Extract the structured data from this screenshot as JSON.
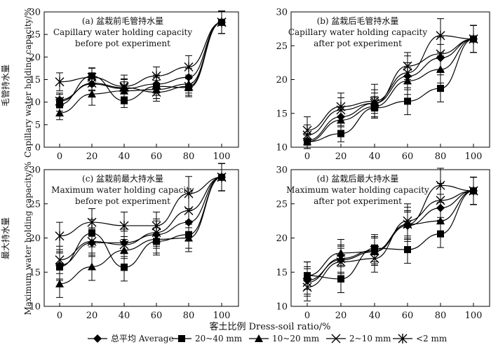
{
  "figure": {
    "y_label_left_top": "毛管持水量",
    "y_label_en_top": "Capillary water holding capacity/%",
    "y_label_left_bottom": "最大持水量",
    "y_label_en_bottom": "Maximum water holding capacity/%",
    "x_label": "客土比例 Dress-soil ratio/%"
  },
  "legend": [
    {
      "name": "总平均 Average",
      "marker": "diamond"
    },
    {
      "name": "20~40 mm",
      "marker": "square"
    },
    {
      "name": "10~20 mm",
      "marker": "triangle"
    },
    {
      "name": "2~10 mm",
      "marker": "x"
    },
    {
      "name": "<2 mm",
      "marker": "star"
    }
  ],
  "chart_data": [
    {
      "type": "line",
      "panel": "a",
      "title_lines": [
        "(a) 盆栽前毛管持水量",
        "Capillary water holding capacity",
        "before pot experiment"
      ],
      "categories": [
        "0",
        "20",
        "40",
        "60",
        "80",
        "100"
      ],
      "ylim": [
        0,
        30
      ],
      "yticks": [
        0,
        5,
        10,
        15,
        20,
        25,
        30
      ],
      "series": [
        {
          "name": "总平均 Average",
          "values": [
            10.5,
            14.0,
            13.0,
            14.0,
            15.5,
            27.7
          ],
          "err": [
            1.5,
            1.5,
            2.0,
            2.0,
            2.0,
            2.5
          ]
        },
        {
          "name": "20~40 mm",
          "values": [
            9.5,
            15.8,
            10.3,
            13.5,
            13.2,
            27.7
          ],
          "err": [
            1.5,
            1.8,
            1.5,
            2.0,
            2.0,
            2.5
          ]
        },
        {
          "name": "10~20 mm",
          "values": [
            7.6,
            11.8,
            12.5,
            12.8,
            14.0,
            27.7
          ],
          "err": [
            1.5,
            2.5,
            2.0,
            2.0,
            2.0,
            2.5
          ]
        },
        {
          "name": "2~10 mm",
          "values": [
            10.2,
            14.2,
            13.2,
            12.2,
            13.5,
            27.7
          ],
          "err": [
            1.5,
            1.5,
            2.0,
            2.0,
            2.0,
            2.5
          ]
        },
        {
          "name": "<2 mm",
          "values": [
            14.5,
            15.5,
            13.5,
            15.8,
            17.8,
            27.7
          ],
          "err": [
            2.0,
            2.0,
            2.5,
            2.0,
            2.5,
            2.5
          ]
        }
      ]
    },
    {
      "type": "line",
      "panel": "b",
      "title_lines": [
        "(b) 盆栽后毛管持水量",
        "Capillary water holding capacity",
        "after pot experiment"
      ],
      "categories": [
        "0",
        "20",
        "40",
        "60",
        "80",
        "100"
      ],
      "ylim": [
        10,
        30
      ],
      "yticks": [
        10,
        15,
        20,
        25,
        30
      ],
      "series": [
        {
          "name": "总平均 Average",
          "values": [
            11.0,
            14.5,
            16.5,
            20.5,
            23.2,
            26.0
          ],
          "err": [
            1.0,
            1.5,
            1.5,
            2.0,
            2.0,
            2.0
          ]
        },
        {
          "name": "20~40 mm",
          "values": [
            10.8,
            12.0,
            15.8,
            16.8,
            18.7,
            26.0
          ],
          "err": [
            1.0,
            1.2,
            1.5,
            2.0,
            2.0,
            2.0
          ]
        },
        {
          "name": "10~20 mm",
          "values": [
            10.8,
            14.0,
            16.0,
            19.8,
            21.5,
            26.0
          ],
          "err": [
            1.0,
            1.5,
            1.5,
            2.0,
            2.0,
            2.0
          ]
        },
        {
          "name": "2~10 mm",
          "values": [
            11.8,
            15.5,
            16.5,
            22.0,
            23.8,
            26.0
          ],
          "err": [
            1.5,
            1.8,
            2.0,
            2.0,
            2.5,
            2.0
          ]
        },
        {
          "name": "<2 mm",
          "values": [
            12.5,
            16.0,
            16.8,
            21.0,
            26.5,
            26.0
          ],
          "err": [
            2.0,
            2.0,
            2.5,
            2.5,
            2.5,
            2.0
          ]
        }
      ]
    },
    {
      "type": "line",
      "panel": "c",
      "title_lines": [
        "(c) 盆栽前最大持水量",
        "Maximum water holding capacity",
        "before pot experiment"
      ],
      "categories": [
        "0",
        "20",
        "40",
        "60",
        "80",
        "100"
      ],
      "ylim": [
        10,
        30
      ],
      "yticks": [
        10,
        15,
        20,
        25,
        30
      ],
      "series": [
        {
          "name": "总平均 Average",
          "values": [
            16.0,
            19.3,
            19.3,
            20.5,
            22.3,
            28.9
          ],
          "err": [
            2.0,
            2.0,
            2.0,
            2.0,
            2.0,
            2.0
          ]
        },
        {
          "name": "20~40 mm",
          "values": [
            15.8,
            20.7,
            15.7,
            19.5,
            20.5,
            28.9
          ],
          "err": [
            2.0,
            2.0,
            2.0,
            2.0,
            2.0,
            2.0
          ]
        },
        {
          "name": "10~20 mm",
          "values": [
            13.3,
            15.8,
            18.2,
            19.8,
            20.0,
            28.9
          ],
          "err": [
            2.0,
            2.0,
            2.0,
            2.0,
            2.0,
            2.0
          ]
        },
        {
          "name": "2~10 mm",
          "values": [
            16.8,
            19.5,
            19.0,
            20.8,
            24.0,
            28.9
          ],
          "err": [
            2.0,
            2.0,
            2.0,
            2.0,
            2.5,
            2.0
          ]
        },
        {
          "name": "<2 mm",
          "values": [
            20.3,
            22.3,
            21.8,
            21.8,
            26.5,
            28.9
          ],
          "err": [
            2.0,
            2.0,
            2.0,
            2.0,
            2.5,
            2.0
          ]
        }
      ]
    },
    {
      "type": "line",
      "panel": "d",
      "title_lines": [
        "(d) 盆栽后最大持水量",
        "Maximum water holding capacity",
        "after pot experiment"
      ],
      "categories": [
        "0",
        "20",
        "40",
        "60",
        "80",
        "100"
      ],
      "ylim": [
        10,
        30
      ],
      "yticks": [
        10,
        15,
        20,
        25,
        30
      ],
      "series": [
        {
          "name": "总平均 Average",
          "values": [
            13.8,
            16.8,
            18.0,
            21.8,
            24.4,
            26.9
          ],
          "err": [
            2.0,
            2.0,
            2.0,
            2.0,
            2.0,
            2.0
          ]
        },
        {
          "name": "20~40 mm",
          "values": [
            14.5,
            14.0,
            18.5,
            18.3,
            20.6,
            26.9
          ],
          "err": [
            2.0,
            2.0,
            2.0,
            2.0,
            2.0,
            2.0
          ]
        },
        {
          "name": "10~20 mm",
          "values": [
            14.5,
            17.8,
            18.0,
            22.0,
            22.5,
            26.9
          ],
          "err": [
            2.0,
            2.0,
            2.0,
            2.0,
            2.0,
            2.0
          ]
        },
        {
          "name": "2~10 mm",
          "values": [
            12.8,
            16.5,
            17.0,
            22.5,
            25.5,
            26.9
          ],
          "err": [
            2.0,
            2.0,
            2.0,
            2.5,
            2.5,
            2.0
          ]
        },
        {
          "name": "<2 mm",
          "values": [
            13.5,
            17.0,
            18.2,
            22.0,
            27.7,
            26.9
          ],
          "err": [
            2.0,
            2.0,
            2.0,
            2.5,
            2.5,
            2.0
          ]
        }
      ]
    }
  ]
}
